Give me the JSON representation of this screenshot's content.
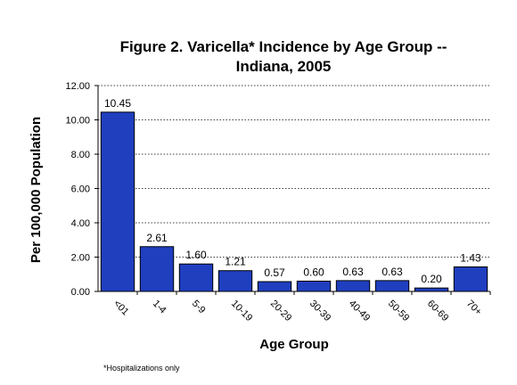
{
  "chart_data": {
    "type": "bar",
    "title_lines": [
      "Figure 2.  Varicella* Incidence by Age Group --",
      "Indiana, 2005"
    ],
    "xlabel": "Age Group",
    "ylabel": "Per 100,000 Population",
    "footnote": "*Hospitalizations only",
    "categories": [
      "<01",
      "1-4",
      "5-9",
      "10-19",
      "20-29",
      "30-39",
      "40-49",
      "50-59",
      "60-69",
      "70+"
    ],
    "values": [
      10.45,
      2.61,
      1.6,
      1.21,
      0.57,
      0.6,
      0.63,
      0.63,
      0.2,
      1.43
    ],
    "data_labels": [
      "10.45",
      "2.61",
      "1.60",
      "1.21",
      "0.57",
      "0.60",
      "0.63",
      "0.63",
      "0.20",
      "1.43"
    ],
    "yticks": [
      0,
      2,
      4,
      6,
      8,
      10,
      12
    ],
    "ytick_labels": [
      "0.00",
      "2.00",
      "4.00",
      "6.00",
      "8.00",
      "10.00",
      "12.00"
    ],
    "ylim": [
      0,
      12
    ],
    "grid": "horizontal dotted",
    "bar_color": "#1f3fbf",
    "bar_edge_color": "#000000"
  }
}
